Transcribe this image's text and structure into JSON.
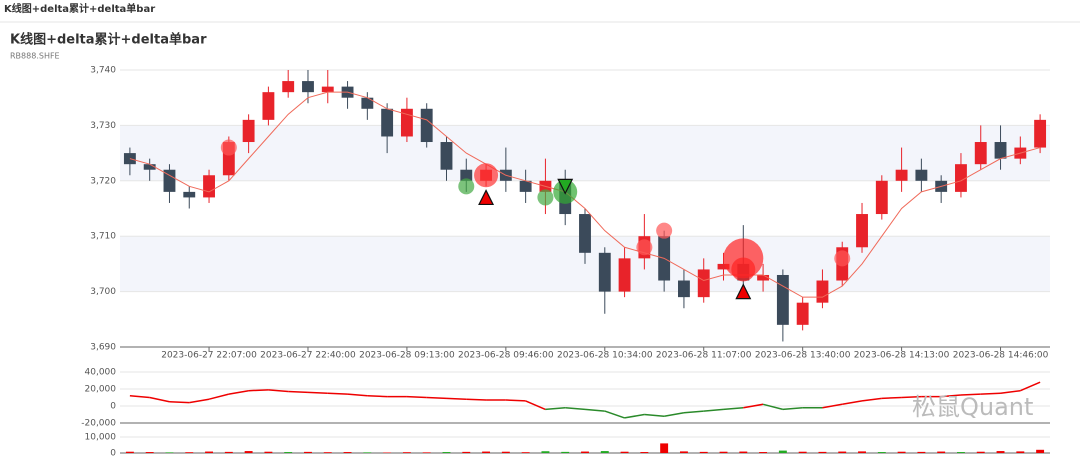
{
  "page_header": "K线图+delta累计+delta单bar",
  "watermark": "松鼠Quant",
  "chart_data": [
    {
      "type": "candlestick",
      "title": "K线图+delta累计+delta单bar",
      "subtitle": "RB888.SHFE",
      "up_color": "#e8232a",
      "down_color": "#3b4a5a",
      "categories": [
        null,
        null,
        null,
        null,
        "2023-06-27 22:07:00",
        null,
        null,
        null,
        null,
        "2023-06-27 22:40:00",
        null,
        null,
        null,
        null,
        "2023-06-28 09:13:00",
        null,
        null,
        null,
        null,
        "2023-06-28 09:46:00",
        null,
        null,
        null,
        null,
        "2023-06-28 10:34:00",
        null,
        null,
        null,
        null,
        "2023-06-28 11:07:00",
        null,
        null,
        null,
        null,
        "2023-06-28 13:40:00",
        null,
        null,
        null,
        null,
        "2023-06-28 14:13:00",
        null,
        null,
        null,
        null,
        "2023-06-28 14:46:00",
        null,
        null
      ],
      "candles": [
        [
          3725,
          3723,
          3721,
          3726
        ],
        [
          3723,
          3722,
          3720,
          3724
        ],
        [
          3722,
          3718,
          3716,
          3723
        ],
        [
          3718,
          3717,
          3715,
          3719
        ],
        [
          3717,
          3721,
          3716,
          3722
        ],
        [
          3721,
          3727,
          3720,
          3728
        ],
        [
          3727,
          3731,
          3725,
          3732
        ],
        [
          3731,
          3736,
          3730,
          3737
        ],
        [
          3736,
          3738,
          3735,
          3740
        ],
        [
          3738,
          3736,
          3734,
          3740
        ],
        [
          3736,
          3737,
          3734,
          3740
        ],
        [
          3737,
          3735,
          3733,
          3738
        ],
        [
          3735,
          3733,
          3731,
          3736
        ],
        [
          3733,
          3728,
          3725,
          3734
        ],
        [
          3728,
          3733,
          3727,
          3735
        ],
        [
          3733,
          3727,
          3726,
          3734
        ],
        [
          3727,
          3722,
          3720,
          3728
        ],
        [
          3722,
          3720,
          3718,
          3724
        ],
        [
          3720,
          3722,
          3719,
          3723
        ],
        [
          3722,
          3720,
          3718,
          3726
        ],
        [
          3720,
          3718,
          3716,
          3722
        ],
        [
          3718,
          3720,
          3714,
          3724
        ],
        [
          3720,
          3714,
          3712,
          3722
        ],
        [
          3714,
          3707,
          3705,
          3715
        ],
        [
          3707,
          3700,
          3696,
          3708
        ],
        [
          3700,
          3706,
          3699,
          3708
        ],
        [
          3706,
          3710,
          3704,
          3714
        ],
        [
          3710,
          3702,
          3700,
          3711
        ],
        [
          3702,
          3699,
          3697,
          3704
        ],
        [
          3699,
          3704,
          3698,
          3706
        ],
        [
          3704,
          3705,
          3702,
          3707
        ],
        [
          3705,
          3702,
          3700,
          3712
        ],
        [
          3702,
          3703,
          3700,
          3705
        ],
        [
          3703,
          3694,
          3691,
          3704
        ],
        [
          3694,
          3698,
          3693,
          3699
        ],
        [
          3698,
          3702,
          3697,
          3704
        ],
        [
          3702,
          3708,
          3701,
          3709
        ],
        [
          3708,
          3714,
          3707,
          3716
        ],
        [
          3714,
          3720,
          3713,
          3721
        ],
        [
          3720,
          3722,
          3718,
          3726
        ],
        [
          3722,
          3720,
          3718,
          3724
        ],
        [
          3720,
          3718,
          3716,
          3721
        ],
        [
          3718,
          3723,
          3717,
          3725
        ],
        [
          3723,
          3727,
          3722,
          3730
        ],
        [
          3727,
          3724,
          3722,
          3730
        ],
        [
          3724,
          3726,
          3723,
          3728
        ],
        [
          3726,
          3731,
          3725,
          3732
        ]
      ],
      "ma": {
        "color": "#f06a5a",
        "values": [
          3724,
          3723,
          3721,
          3719,
          3718,
          3720,
          3724,
          3728,
          3732,
          3735,
          3736,
          3736,
          3735,
          3733,
          3732,
          3731,
          3728,
          3725,
          3723,
          3721,
          3720,
          3719,
          3718,
          3715,
          3711,
          3708,
          3707,
          3706,
          3704,
          3702,
          3703,
          3703,
          3703,
          3701,
          3699,
          3699,
          3701,
          3705,
          3710,
          3715,
          3718,
          3719,
          3720,
          3722,
          3724,
          3725,
          3726
        ]
      },
      "bubbles": [
        {
          "x": 5,
          "y": 3726,
          "size": 2,
          "color": "#f55"
        },
        {
          "x": 18,
          "y": 3721,
          "size": 3,
          "color": "#f33"
        },
        {
          "x": 17,
          "y": 3719,
          "size": 2,
          "color": "#4a4"
        },
        {
          "x": 21,
          "y": 3717,
          "size": 2,
          "color": "#4a4"
        },
        {
          "x": 22,
          "y": 3718,
          "size": 3,
          "color": "#3a3"
        },
        {
          "x": 26,
          "y": 3708,
          "size": 2,
          "color": "#f55"
        },
        {
          "x": 27,
          "y": 3711,
          "size": 2,
          "color": "#f55"
        },
        {
          "x": 31,
          "y": 3706,
          "size": 5,
          "color": "#f22"
        },
        {
          "x": 31,
          "y": 3704,
          "size": 3,
          "color": "#f22"
        },
        {
          "x": 36,
          "y": 3706,
          "size": 2,
          "color": "#f55"
        }
      ],
      "markers": [
        {
          "x": 18,
          "y": 3717,
          "dir": "up",
          "color": "#e00"
        },
        {
          "x": 22,
          "y": 3719,
          "dir": "down",
          "color": "#2a2"
        },
        {
          "x": 31,
          "y": 3700,
          "dir": "up",
          "color": "#e00"
        }
      ],
      "ylim": [
        3690,
        3740
      ],
      "yticks": [
        {
          "value": 3690,
          "label": "3,690"
        },
        {
          "value": 3700,
          "label": "3,700"
        },
        {
          "value": 3710,
          "label": "3,710"
        },
        {
          "value": 3720,
          "label": "3,720"
        },
        {
          "value": 3730,
          "label": "3,730"
        },
        {
          "value": 3740,
          "label": "3,740"
        }
      ],
      "grid": true
    },
    {
      "type": "line",
      "pos_color": "#e00",
      "neg_color": "#2a8a2a",
      "values": [
        12000,
        10000,
        5000,
        4000,
        8000,
        14000,
        18000,
        19000,
        17000,
        16000,
        15000,
        14000,
        12000,
        11000,
        11000,
        10000,
        9000,
        8000,
        7000,
        7000,
        6000,
        -4000,
        -2000,
        -4000,
        -6000,
        -14000,
        -10000,
        -12000,
        -8000,
        -6000,
        -4000,
        -2000,
        2000,
        -4000,
        -2000,
        -2000,
        2000,
        6000,
        9000,
        10000,
        11000,
        11000,
        13000,
        14000,
        15000,
        18000,
        28000
      ],
      "ylim": [
        -20000,
        40000
      ],
      "yticks": [
        {
          "value": -20000,
          "label": "-20,000"
        },
        {
          "value": 0,
          "label": "0"
        },
        {
          "value": 20000,
          "label": "20,000"
        },
        {
          "value": 40000,
          "label": "40,000"
        }
      ],
      "grid": true
    },
    {
      "type": "bar",
      "values": [
        800,
        600,
        400,
        500,
        900,
        700,
        1200,
        800,
        600,
        700,
        500,
        600,
        400,
        300,
        500,
        400,
        600,
        700,
        900,
        800,
        500,
        1100,
        700,
        900,
        1200,
        800,
        600,
        6000,
        1000,
        700,
        800,
        900,
        600,
        1500,
        800,
        700,
        900,
        1000,
        600,
        800,
        700,
        900,
        600,
        800,
        1200,
        1000,
        2000
      ],
      "colors": [
        "#e00",
        "#e00",
        "#2a2",
        "#e00",
        "#e00",
        "#e00",
        "#e00",
        "#e00",
        "#2a2",
        "#e00",
        "#e00",
        "#e00",
        "#2a2",
        "#e00",
        "#e00",
        "#e00",
        "#2a2",
        "#e00",
        "#e00",
        "#e00",
        "#e00",
        "#2a2",
        "#2a2",
        "#e00",
        "#2a2",
        "#e00",
        "#e00",
        "#e00",
        "#e00",
        "#e00",
        "#e00",
        "#e00",
        "#e00",
        "#2a2",
        "#e00",
        "#e00",
        "#e00",
        "#e00",
        "#2a2",
        "#e00",
        "#e00",
        "#e00",
        "#2a2",
        "#e00",
        "#e00",
        "#e00",
        "#e00"
      ],
      "ylim": [
        0,
        10000
      ],
      "yticks": [
        {
          "value": 0,
          "label": "0"
        },
        {
          "value": 10000,
          "label": "10,000"
        }
      ],
      "grid": true
    }
  ]
}
